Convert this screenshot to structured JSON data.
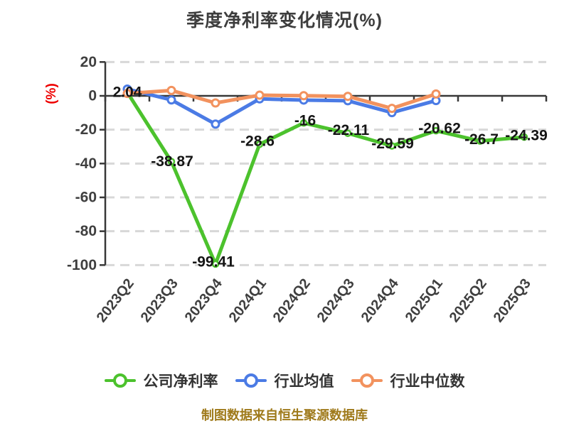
{
  "title": "季度净利率变化情况(%)",
  "y_axis_unit": "(%)",
  "footer": "制图数据来自恒生聚源数据库",
  "colors": {
    "company_green": "#4cc22d",
    "mean_blue": "#4b7be5",
    "median_orange": "#f2925e",
    "axis": "#383838",
    "grid": "#d8d8d8",
    "tick_text": "#3f3f3f",
    "point_label_text": "#151515",
    "title_text": "#3d3d3d",
    "unit_text": "#ee0000",
    "footer_text": "#9f7a1b",
    "legend_text": "#333333"
  },
  "legend": [
    {
      "label": "公司净利率",
      "color": "#4cc22d",
      "key": "company"
    },
    {
      "label": "行业均值",
      "color": "#4b7be5",
      "key": "industry-mean"
    },
    {
      "label": "行业中位数",
      "color": "#f2925e",
      "key": "industry-median"
    }
  ],
  "chart_data": {
    "type": "line",
    "title": "季度净利率变化情况(%)",
    "ylabel": "(%)",
    "ylim": [
      -100,
      20
    ],
    "yticks": [
      20,
      0,
      -20,
      -40,
      -60,
      -80,
      -100
    ],
    "grid": "horizontal-dashed",
    "legend_position": "bottom",
    "categories": [
      "2023Q2",
      "2023Q3",
      "2023Q4",
      "2024Q1",
      "2024Q2",
      "2024Q3",
      "2024Q4",
      "2025Q1",
      "2025Q2",
      "2025Q3"
    ],
    "series": [
      {
        "name": "公司净利率",
        "key": "company",
        "color": "#4cc22d",
        "values": [
          2.04,
          -38.87,
          -99.41,
          -28.6,
          -16,
          -22.11,
          -29.59,
          -20.62,
          -26.7,
          -24.39
        ],
        "point_labels": [
          "2.04",
          "-38.87",
          "-99.41",
          "-28.6",
          "-16",
          "-22.11",
          "-29.59",
          "-20.62",
          "-26.7",
          "-24.39"
        ],
        "label_offsets": [
          [
            0,
            0
          ],
          [
            1,
            0
          ],
          [
            -3,
            -3
          ],
          [
            -3,
            -4
          ],
          [
            2,
            -3
          ],
          [
            1,
            -4
          ],
          [
            1,
            -3
          ],
          [
            5,
            -3
          ],
          [
            2,
            -2
          ],
          [
            3,
            -2
          ]
        ]
      },
      {
        "name": "行业均值",
        "key": "industry-mean",
        "color": "#4b7be5",
        "values": [
          4.0,
          -2.4,
          -16.7,
          -1.8,
          -2.5,
          -2.9,
          -9.9,
          -2.8
        ]
      },
      {
        "name": "行业中位数",
        "key": "industry-median",
        "color": "#f2925e",
        "values": [
          1.4,
          3.2,
          -4.2,
          0.4,
          0.1,
          -0.3,
          -7.4,
          1.1
        ]
      }
    ]
  }
}
